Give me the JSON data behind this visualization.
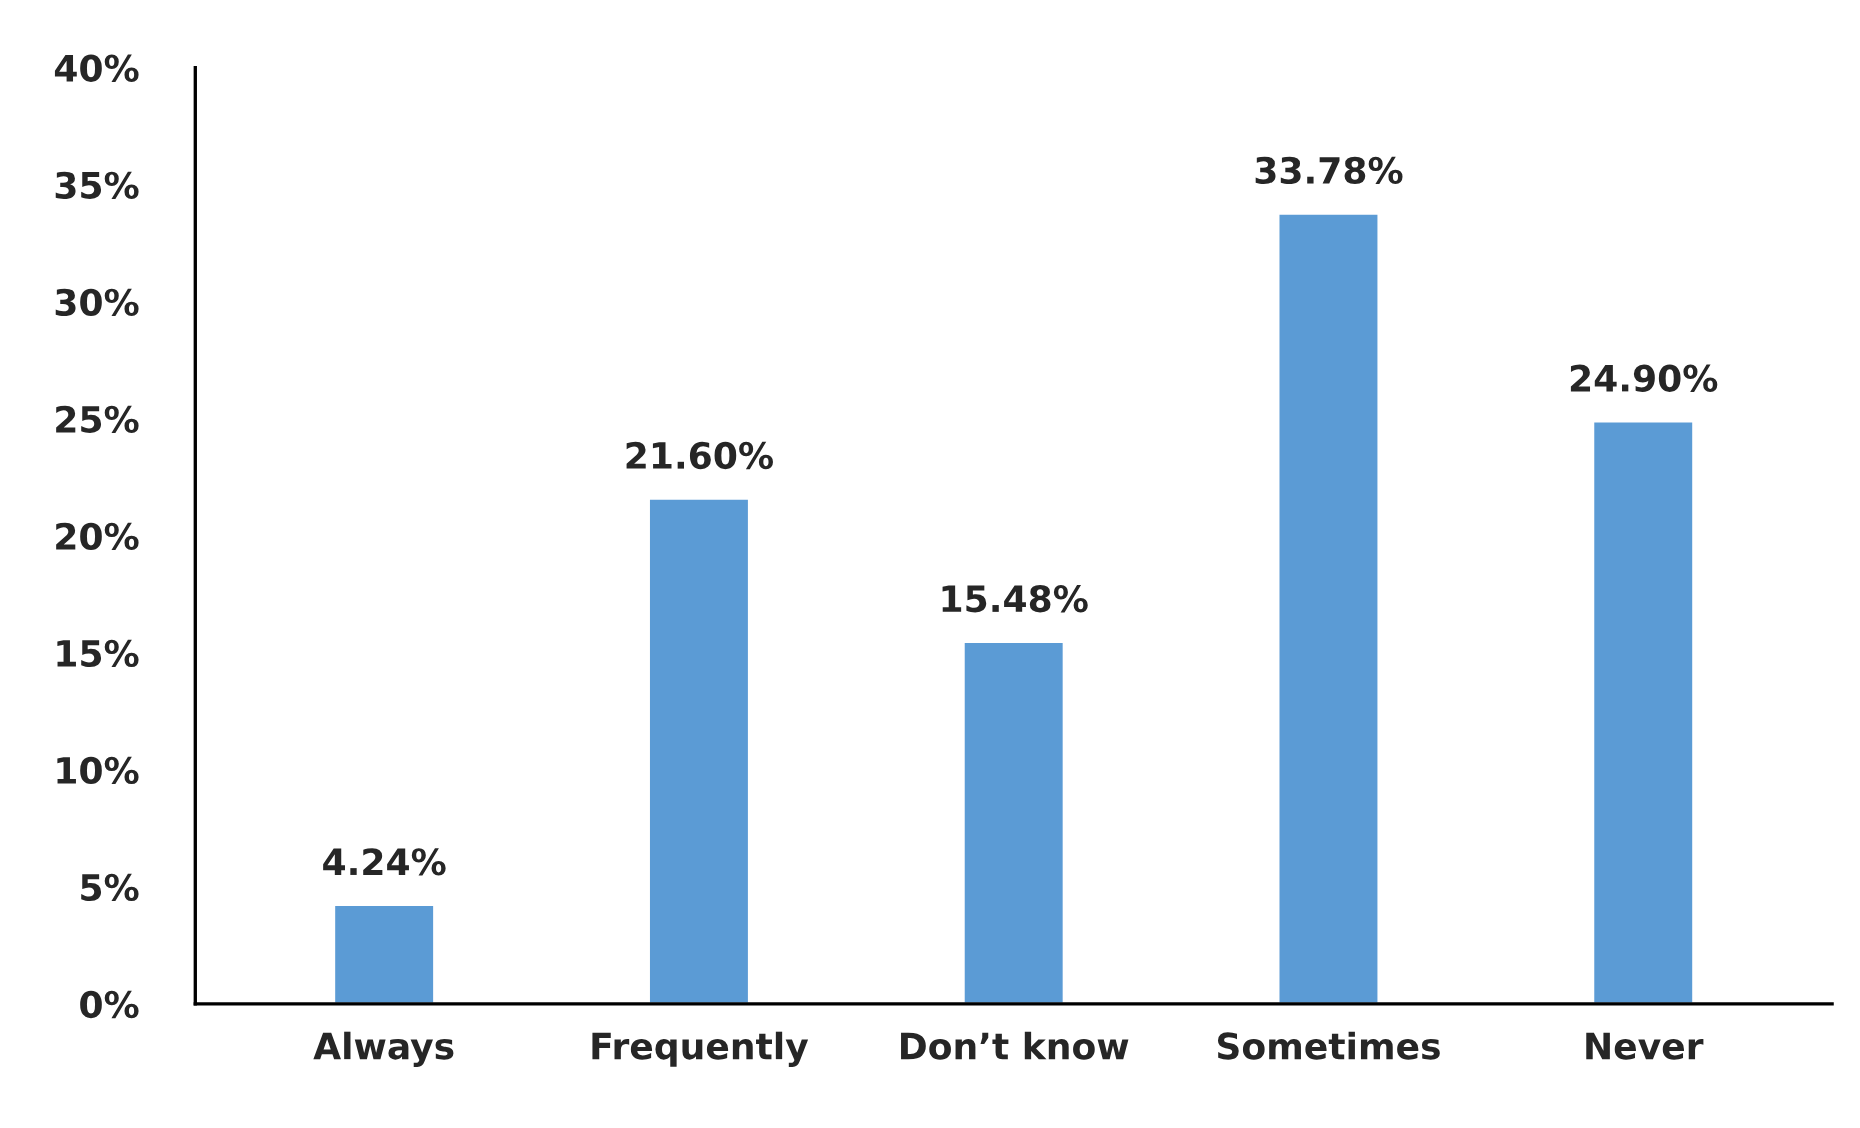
{
  "chart_data": {
    "type": "bar",
    "categories": [
      "Always",
      "Frequently",
      "Don’t know",
      "Sometimes",
      "Never"
    ],
    "values": [
      4.24,
      21.6,
      15.48,
      33.78,
      24.9
    ],
    "value_labels": [
      "4.24%",
      "21.60%",
      "15.48%",
      "33.78%",
      "24.90%"
    ],
    "color": "#5b9bd5",
    "ylim": [
      0,
      40
    ],
    "yticks": [
      {
        "value": 0,
        "label": "0%"
      },
      {
        "value": 5,
        "label": "5%"
      },
      {
        "value": 10,
        "label": "10%"
      },
      {
        "value": 15,
        "label": "15%"
      },
      {
        "value": 20,
        "label": "20%"
      },
      {
        "value": 25,
        "label": "25%"
      },
      {
        "value": 30,
        "label": "30%"
      },
      {
        "value": 35,
        "label": "35%"
      },
      {
        "value": 40,
        "label": "40%"
      }
    ],
    "grid": false,
    "legend": false
  }
}
